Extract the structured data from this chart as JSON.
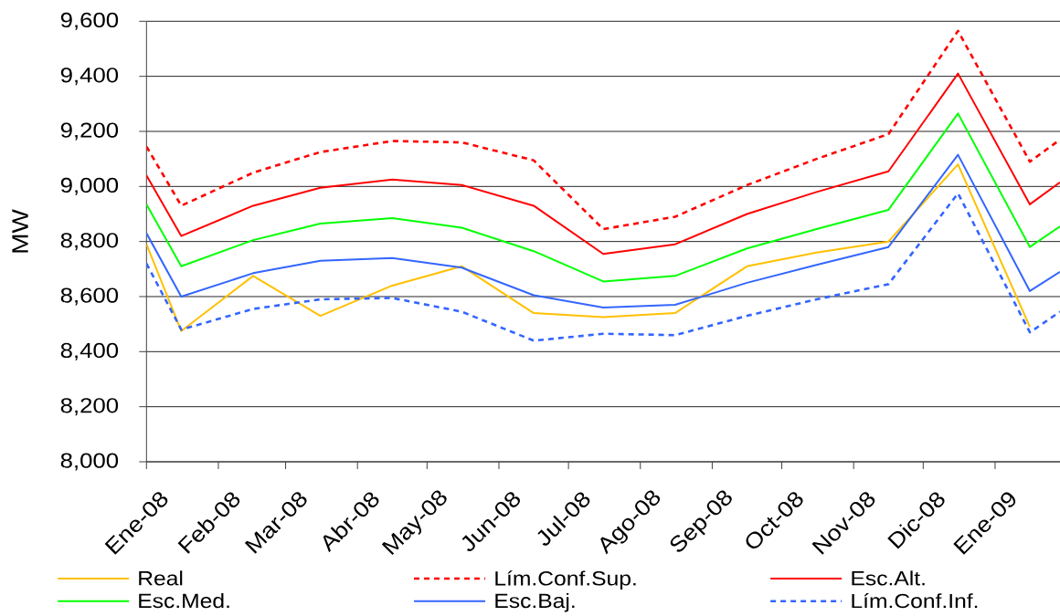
{
  "chart_data": {
    "type": "line",
    "ylabel": "MW",
    "x": [
      "2008-01-01",
      "2008-01-16",
      "2008-02-16",
      "2008-03-16",
      "2008-04-16",
      "2008-05-16",
      "2008-06-16",
      "2008-07-16",
      "2008-08-16",
      "2008-09-16",
      "2008-10-16",
      "2008-11-16",
      "2008-12-16",
      "2009-01-16",
      "2009-01-29"
    ],
    "xlim": [
      "2008-01-01",
      "2009-01-29"
    ],
    "xticks": [
      {
        "value": "2008-01-01",
        "label": "Ene-08"
      },
      {
        "value": "2008-02-01",
        "label": "Feb-08"
      },
      {
        "value": "2008-03-01",
        "label": "Mar-08"
      },
      {
        "value": "2008-04-01",
        "label": "Abr-08"
      },
      {
        "value": "2008-05-01",
        "label": "May-08"
      },
      {
        "value": "2008-06-01",
        "label": "Jun-08"
      },
      {
        "value": "2008-07-01",
        "label": "Jul-08"
      },
      {
        "value": "2008-08-01",
        "label": "Ago-08"
      },
      {
        "value": "2008-09-01",
        "label": "Sep-08"
      },
      {
        "value": "2008-10-01",
        "label": "Oct-08"
      },
      {
        "value": "2008-11-01",
        "label": "Nov-08"
      },
      {
        "value": "2008-12-01",
        "label": "Dic-08"
      },
      {
        "value": "2009-01-01",
        "label": "Ene-09"
      }
    ],
    "ylim": [
      8000,
      9600
    ],
    "yticks": [
      {
        "value": 8000,
        "label": "8,000"
      },
      {
        "value": 8200,
        "label": "8,200"
      },
      {
        "value": 8400,
        "label": "8,400"
      },
      {
        "value": 8600,
        "label": "8,600"
      },
      {
        "value": 8800,
        "label": "8,800"
      },
      {
        "value": 9000,
        "label": "9,000"
      },
      {
        "value": 9200,
        "label": "9,200"
      },
      {
        "value": 9400,
        "label": "9,400"
      },
      {
        "value": 9600,
        "label": "9,600"
      }
    ],
    "grid": "y",
    "legend": "bottom",
    "series": [
      {
        "name": "Real",
        "color": "#ffc000",
        "line_style": "solid",
        "values": [
          8790,
          8475,
          8675,
          8530,
          8640,
          8710,
          8540,
          8525,
          8540,
          8710,
          8760,
          8800,
          9080,
          8490,
          null
        ]
      },
      {
        "name": "Lím.Conf.Sup.",
        "color": "#ff0000",
        "line_style": "dashed",
        "values": [
          9145,
          8930,
          9050,
          9125,
          9165,
          9160,
          9095,
          8845,
          8890,
          9005,
          9100,
          9190,
          9565,
          9090,
          9170
        ]
      },
      {
        "name": "Esc.Alt.",
        "color": "#ff0000",
        "line_style": "solid",
        "values": [
          9040,
          8820,
          8930,
          8995,
          9025,
          9005,
          8930,
          8755,
          8790,
          8900,
          8980,
          9055,
          9410,
          8935,
          9015
        ]
      },
      {
        "name": "Esc.Med.",
        "color": "#00ff00",
        "line_style": "solid",
        "values": [
          8935,
          8710,
          8805,
          8865,
          8885,
          8850,
          8765,
          8655,
          8675,
          8775,
          8845,
          8915,
          9265,
          8780,
          8855
        ]
      },
      {
        "name": "Esc.Baj.",
        "color": "#3366ff",
        "line_style": "solid",
        "values": [
          8830,
          8600,
          8685,
          8730,
          8740,
          8705,
          8605,
          8560,
          8570,
          8650,
          8715,
          8780,
          9115,
          8620,
          8690
        ]
      },
      {
        "name": "Lím.Conf.Inf.",
        "color": "#3366ff",
        "line_style": "dashed",
        "values": [
          8720,
          8480,
          8555,
          8590,
          8595,
          8545,
          8440,
          8465,
          8460,
          8530,
          8590,
          8645,
          8975,
          8470,
          8545
        ]
      }
    ]
  }
}
